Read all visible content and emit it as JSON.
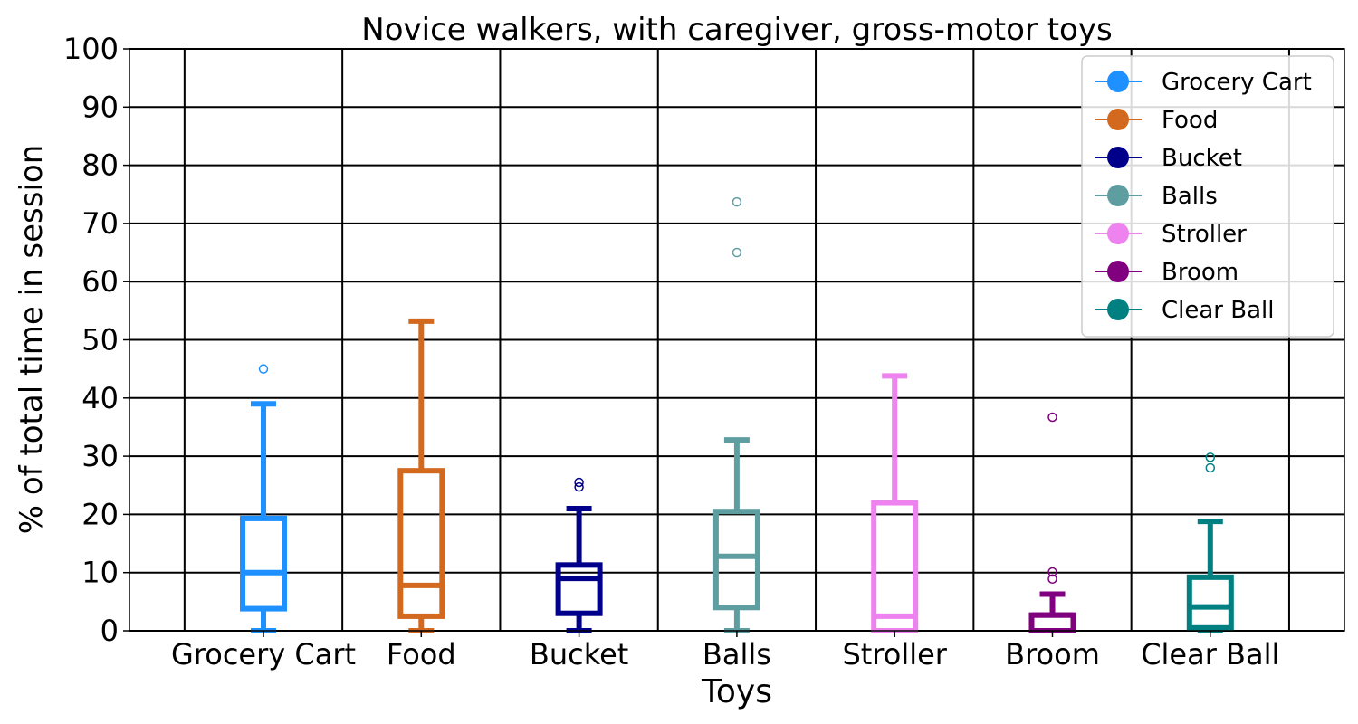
{
  "chart_data": {
    "type": "box",
    "title": "Novice walkers, with caregiver, gross-motor toys",
    "xlabel": "Toys",
    "ylabel": "% of total time in session",
    "ylim": [
      0,
      100
    ],
    "yticks": [
      0,
      10,
      20,
      30,
      40,
      50,
      60,
      70,
      80,
      90,
      100
    ],
    "grid": true,
    "legend_position": "top-right",
    "categories": [
      "Grocery Cart",
      "Food",
      "Bucket",
      "Balls",
      "Stroller",
      "Broom",
      "Clear Ball"
    ],
    "series": [
      {
        "name": "Grocery Cart",
        "color": "#1E90FF",
        "whislo": 0,
        "q1": 3.8,
        "median": 10,
        "q3": 19.3,
        "whishi": 39,
        "fliers": [
          45
        ]
      },
      {
        "name": "Food",
        "color": "#D2691E",
        "whislo": 0,
        "q1": 2.5,
        "median": 7.8,
        "q3": 27.5,
        "whishi": 53.2,
        "fliers": []
      },
      {
        "name": "Bucket",
        "color": "#00008B",
        "whislo": 0,
        "q1": 3,
        "median": 9,
        "q3": 11.3,
        "whishi": 21,
        "fliers": [
          24.7,
          25.5
        ]
      },
      {
        "name": "Balls",
        "color": "#5F9EA0",
        "whislo": 0,
        "q1": 4,
        "median": 12.8,
        "q3": 20.5,
        "whishi": 32.8,
        "fliers": [
          65,
          73.7
        ]
      },
      {
        "name": "Stroller",
        "color": "#EE82EE",
        "whislo": 0,
        "q1": 0,
        "median": 2.5,
        "q3": 22,
        "whishi": 43.8,
        "fliers": []
      },
      {
        "name": "Broom",
        "color": "#800080",
        "whislo": 0,
        "q1": 0,
        "median": 2.7,
        "q3": 2.7,
        "whishi": 6.3,
        "fliers": [
          8.9,
          10.1,
          36.7
        ]
      },
      {
        "name": "Clear Ball",
        "color": "#008080",
        "whislo": 0,
        "q1": 0.5,
        "median": 4.1,
        "q3": 9.2,
        "whishi": 18.8,
        "fliers": [
          28,
          29.8
        ]
      }
    ]
  }
}
